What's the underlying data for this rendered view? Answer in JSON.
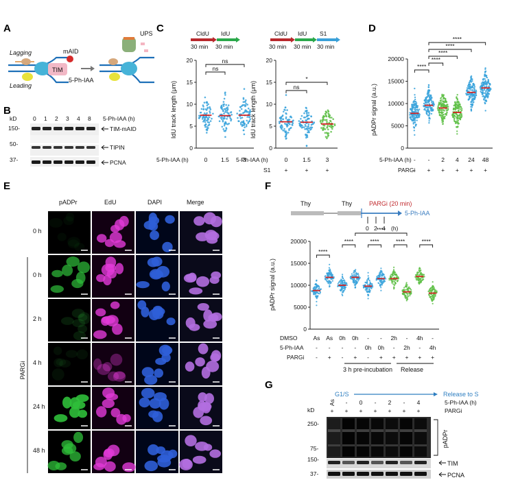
{
  "panels": {
    "A": {
      "label": "A",
      "texts": {
        "lagging": "Lagging",
        "leading": "Leading",
        "tim": "TIM",
        "maid": "mAID",
        "ups": "UPS",
        "treat": "5-Ph-IAA"
      }
    },
    "B": {
      "label": "B",
      "kd": "kD",
      "lanes": [
        "0",
        "1",
        "2",
        "3",
        "4",
        "8"
      ],
      "lane_title": "5-Ph-IAA (h)",
      "bands": [
        {
          "marker": "150-",
          "label": "TIM-mAID"
        },
        {
          "marker": "50-",
          "label": "TIPIN"
        },
        {
          "marker": "37-",
          "label": "PCNA"
        }
      ]
    },
    "C": {
      "label": "C",
      "scheme1": {
        "labels": [
          "CldU",
          "IdU"
        ],
        "times": [
          "30 min",
          "30 min"
        ],
        "colors": [
          "#b8282c",
          "#2aa84a"
        ]
      },
      "scheme2": {
        "labels": [
          "CldU",
          "IdU",
          "S1"
        ],
        "times": [
          "30 min",
          "30 min",
          "30 min"
        ],
        "colors": [
          "#b8282c",
          "#2aa84a",
          "#3aa0d8"
        ]
      },
      "ylabel": "IdU track length (μm)",
      "row_labels": [
        "5-Ph-IAA (h)",
        "S1"
      ]
    },
    "D": {
      "label": "D",
      "ylabel": "pADPr signal (a.u.)",
      "row_labels": [
        "5-Ph-IAA (h)",
        "PARGi"
      ],
      "row1": [
        "-",
        "-",
        "2",
        "4",
        "24",
        "48"
      ],
      "row2": [
        "-",
        "+",
        "+",
        "+",
        "+",
        "+"
      ]
    },
    "E": {
      "label": "E",
      "columns": [
        "pADPr",
        "EdU",
        "DAPI",
        "Merge"
      ],
      "rows": [
        "0 h",
        "0 h",
        "2 h",
        "4 h",
        "24 h",
        "48 h"
      ],
      "side_label": "PARGi"
    },
    "F": {
      "label": "F",
      "scheme": {
        "thy1": "Thy",
        "thy2": "Thy",
        "pargi": "PARGi (20 min)",
        "treat": "5-Ph-IAA",
        "ticks": [
          "0",
          "2",
          "4"
        ],
        "unit": "(h)"
      },
      "ylabel": "pADPr signal (a.u.)",
      "row_labels": [
        "DMSO",
        "5-Ph-IAA",
        "PARGi"
      ],
      "row1": [
        "As",
        "As",
        "0h",
        "0h",
        "-",
        "-",
        "2h",
        "-",
        "4h",
        "-"
      ],
      "row2": [
        "-",
        "-",
        "-",
        "-",
        "0h",
        "0h",
        "-",
        "2h",
        "-",
        "4h"
      ],
      "row3": [
        "-",
        "+",
        "-",
        "+",
        "-",
        "+",
        "+",
        "+",
        "+",
        "+"
      ],
      "group1": "3 h pre-incubation",
      "group2": "Release"
    },
    "G": {
      "label": "G",
      "phase1": "G1/S",
      "phase2": "Release to S",
      "kd": "kD",
      "row1": [
        "As",
        "-",
        "0",
        "-",
        "2",
        "-",
        "4"
      ],
      "row1_title": "5-Ph-IAA (h)",
      "row2": [
        "+",
        "+",
        "+",
        "+",
        "+",
        "+",
        "+"
      ],
      "row2_title": "PARGi",
      "markers": [
        "250-",
        "75-",
        "150-",
        "37-"
      ],
      "bands": [
        "pADPr",
        "TIM",
        "PCNA"
      ]
    }
  },
  "chart_data": [
    {
      "type": "scatter",
      "panel": "C-left",
      "ylabel": "IdU track length (μm)",
      "ylim": [
        0,
        20
      ],
      "yticks": [
        0,
        5,
        10,
        15,
        20
      ],
      "categories": [
        "0",
        "1.5",
        "3"
      ],
      "medians": [
        7.5,
        7.4,
        7.5
      ],
      "significance": [
        {
          "from": 0,
          "to": 1,
          "label": "ns"
        },
        {
          "from": 0,
          "to": 2,
          "label": "ns"
        }
      ]
    },
    {
      "type": "scatter",
      "panel": "C-right",
      "ylabel": "IdU track length (μm)",
      "ylim": [
        0,
        20
      ],
      "yticks": [
        0,
        5,
        10,
        15,
        20
      ],
      "categories": [
        "0",
        "1.5",
        "3"
      ],
      "s1": [
        "+",
        "+",
        "+"
      ],
      "medians": [
        6.0,
        5.9,
        5.5
      ],
      "significance": [
        {
          "from": 0,
          "to": 1,
          "label": "ns"
        },
        {
          "from": 0,
          "to": 2,
          "label": "*"
        }
      ]
    },
    {
      "type": "scatter",
      "panel": "D",
      "ylabel": "pADPr signal (a.u.)",
      "ylim": [
        0,
        20000
      ],
      "yticks": [
        0,
        5000,
        10000,
        15000,
        20000
      ],
      "categories": [
        "-",
        "-",
        "2",
        "4",
        "24",
        "48"
      ],
      "medians": [
        7800,
        9600,
        9000,
        8000,
        12500,
        13500
      ],
      "significance": [
        {
          "from": 0,
          "to": 1,
          "label": "****"
        },
        {
          "from": 1,
          "to": 2,
          "label": "****"
        },
        {
          "from": 1,
          "to": 3,
          "label": "****"
        },
        {
          "from": 1,
          "to": 4,
          "label": "****"
        },
        {
          "from": 1,
          "to": 5,
          "label": "****"
        }
      ]
    },
    {
      "type": "scatter",
      "panel": "F",
      "ylabel": "pADPr signal (a.u.)",
      "ylim": [
        0,
        20000
      ],
      "yticks": [
        0,
        5000,
        10000,
        15000,
        20000
      ],
      "medians": [
        8800,
        11800,
        10000,
        11800,
        9800,
        11500,
        11500,
        8500,
        12000,
        8200
      ],
      "significance": [
        {
          "from": 0,
          "to": 1,
          "label": "****"
        },
        {
          "from": 2,
          "to": 3,
          "label": "****"
        },
        {
          "from": 4,
          "to": 5,
          "label": "****"
        },
        {
          "from": 6,
          "to": 7,
          "label": "****"
        },
        {
          "from": 8,
          "to": 9,
          "label": "****"
        },
        {
          "from": 3,
          "to": 7,
          "label": "****"
        }
      ]
    }
  ]
}
